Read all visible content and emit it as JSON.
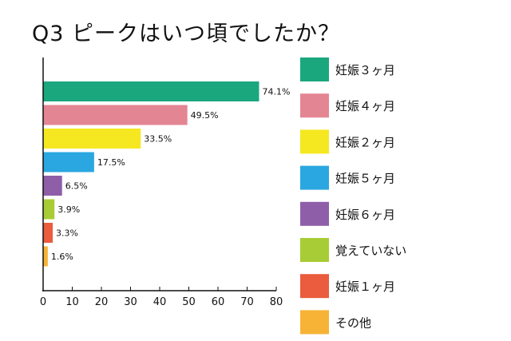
{
  "chart_data": {
    "type": "bar",
    "orientation": "horizontal",
    "title": "Q3 ピークはいつ頃でしたか？",
    "categories": [
      "妊娠３ヶ月",
      "妊娠４ヶ月",
      "妊娠２ヶ月",
      "妊娠５ヶ月",
      "妊娠６ヶ月",
      "覚えていない",
      "妊娠１ヶ月",
      "その他"
    ],
    "values": [
      74.1,
      49.5,
      33.5,
      17.5,
      6.5,
      3.9,
      3.3,
      1.6
    ],
    "value_labels": [
      "74.1%",
      "49.5%",
      "33.5%",
      "17.5%",
      "6.5%",
      "3.9%",
      "3.3%",
      "1.6%"
    ],
    "colors": [
      "#1aa77e",
      "#e48594",
      "#f5e821",
      "#2aa7e0",
      "#8f5ea8",
      "#a8cc35",
      "#eb5b3d",
      "#f6b335"
    ],
    "xlim": [
      0,
      80
    ],
    "xticks": [
      0,
      10,
      20,
      30,
      40,
      50,
      60,
      70,
      80
    ],
    "xtick_labels": [
      "0",
      "10",
      "20",
      "30",
      "40",
      "50",
      "60",
      "70",
      "80"
    ],
    "legend_position": "right",
    "legend": [
      "妊娠３ヶ月",
      "妊娠４ヶ月",
      "妊娠２ヶ月",
      "妊娠５ヶ月",
      "妊娠６ヶ月",
      "覚えていない",
      "妊娠１ヶ月",
      "その他"
    ],
    "grid": false
  }
}
